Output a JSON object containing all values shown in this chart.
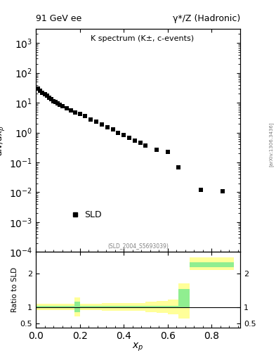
{
  "title_left": "91 GeV ee",
  "title_right": "γ*/Z (Hadronic)",
  "main_title": "K spectrum (K±, c-events)",
  "ylabel_main": "dN/dx_p",
  "ylabel_ratio": "Ratio to SLD",
  "xlabel": "x_p",
  "ref_label": "(SLD_2004_S5693039)",
  "arxiv_label": "[arXiv:1306.3436]",
  "legend_label": "SLD",
  "data_x": [
    0.01,
    0.02,
    0.03,
    0.04,
    0.05,
    0.06,
    0.07,
    0.08,
    0.09,
    0.1,
    0.11,
    0.12,
    0.14,
    0.16,
    0.18,
    0.2,
    0.225,
    0.25,
    0.275,
    0.3,
    0.325,
    0.35,
    0.375,
    0.4,
    0.425,
    0.45,
    0.475,
    0.5,
    0.55,
    0.6,
    0.65,
    0.75,
    0.85
  ],
  "data_y": [
    30.0,
    25.0,
    22.0,
    19.0,
    17.0,
    15.0,
    13.0,
    11.5,
    10.5,
    9.5,
    8.5,
    7.8,
    6.5,
    5.5,
    4.8,
    4.2,
    3.5,
    2.8,
    2.3,
    1.9,
    1.55,
    1.25,
    1.0,
    0.82,
    0.68,
    0.55,
    0.45,
    0.37,
    0.27,
    0.22,
    0.07,
    0.012,
    0.011
  ],
  "ratio_bins": [
    0.0,
    0.025,
    0.05,
    0.075,
    0.1,
    0.125,
    0.15,
    0.175,
    0.2,
    0.25,
    0.3,
    0.35,
    0.4,
    0.45,
    0.5,
    0.55,
    0.6,
    0.65,
    0.7,
    0.75,
    0.8,
    0.85,
    0.9
  ],
  "ratio_green_lo": [
    0.97,
    0.97,
    0.97,
    0.97,
    0.97,
    0.97,
    0.97,
    0.85,
    0.97,
    0.97,
    0.97,
    0.97,
    0.97,
    0.97,
    0.97,
    0.97,
    0.97,
    0.97,
    2.2,
    2.2,
    2.2,
    2.2
  ],
  "ratio_green_hi": [
    1.03,
    1.03,
    1.03,
    1.03,
    1.03,
    1.03,
    1.03,
    1.15,
    1.03,
    1.03,
    1.03,
    1.03,
    1.03,
    1.03,
    1.03,
    1.03,
    1.03,
    1.55,
    2.35,
    2.35,
    2.35,
    2.35
  ],
  "ratio_yellow_lo": [
    0.9,
    0.9,
    0.9,
    0.9,
    0.9,
    0.9,
    0.9,
    0.72,
    0.9,
    0.9,
    0.88,
    0.88,
    0.88,
    0.88,
    0.85,
    0.82,
    0.78,
    0.65,
    2.1,
    2.1,
    2.1,
    2.1
  ],
  "ratio_yellow_hi": [
    1.1,
    1.1,
    1.1,
    1.1,
    1.1,
    1.1,
    1.1,
    1.28,
    1.1,
    1.1,
    1.12,
    1.12,
    1.12,
    1.12,
    1.15,
    1.18,
    1.22,
    1.7,
    2.5,
    2.5,
    2.5,
    2.5
  ],
  "green_color": "#90EE90",
  "yellow_color": "#FFFF99",
  "data_color": "black",
  "marker": "s",
  "marker_size": 4,
  "ylim_main": [
    0.0001,
    3000
  ],
  "ylim_ratio": [
    0.38,
    2.65
  ],
  "xlim": [
    0.0,
    0.93
  ]
}
